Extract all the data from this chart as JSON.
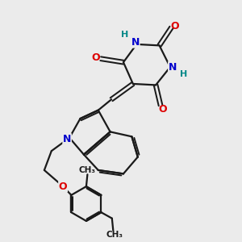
{
  "bg_color": "#ebebeb",
  "bond_color": "#1a1a1a",
  "N_color": "#0000cc",
  "O_color": "#dd0000",
  "H_color": "#008888",
  "lw": 1.6,
  "figsize": [
    3.0,
    3.0
  ],
  "dpi": 100,
  "xlim": [
    0,
    10
  ],
  "ylim": [
    0,
    10
  ]
}
